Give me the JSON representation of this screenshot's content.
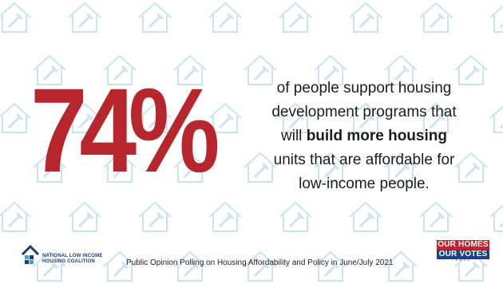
{
  "stat": {
    "value": "74%"
  },
  "statement": {
    "part1": "of people support housing",
    "part2": "development programs that",
    "part3_pre": "will ",
    "part3_bold": "build more housing",
    "part4": "units that are affordable for",
    "part5": "low-income people."
  },
  "footer": {
    "org_line1": "NATIONAL LOW INCOME",
    "org_line2": "HOUSING COALITION",
    "source": "Public Opinion Polling on Housing Affordability and Policy in June/July 2021"
  },
  "badge": {
    "line1": "OUR HOMES",
    "line2": "OUR VOTES"
  },
  "colors": {
    "stat_red": "#b8262d",
    "pattern_blue": "#c9e4ef",
    "nlihc_navy": "#1e3c6e",
    "badge_red": "#c8202c",
    "badge_blue": "#1f3f86"
  },
  "icons": [
    "house-icon",
    "hammer-icon",
    "nlihc-logo-icon"
  ]
}
